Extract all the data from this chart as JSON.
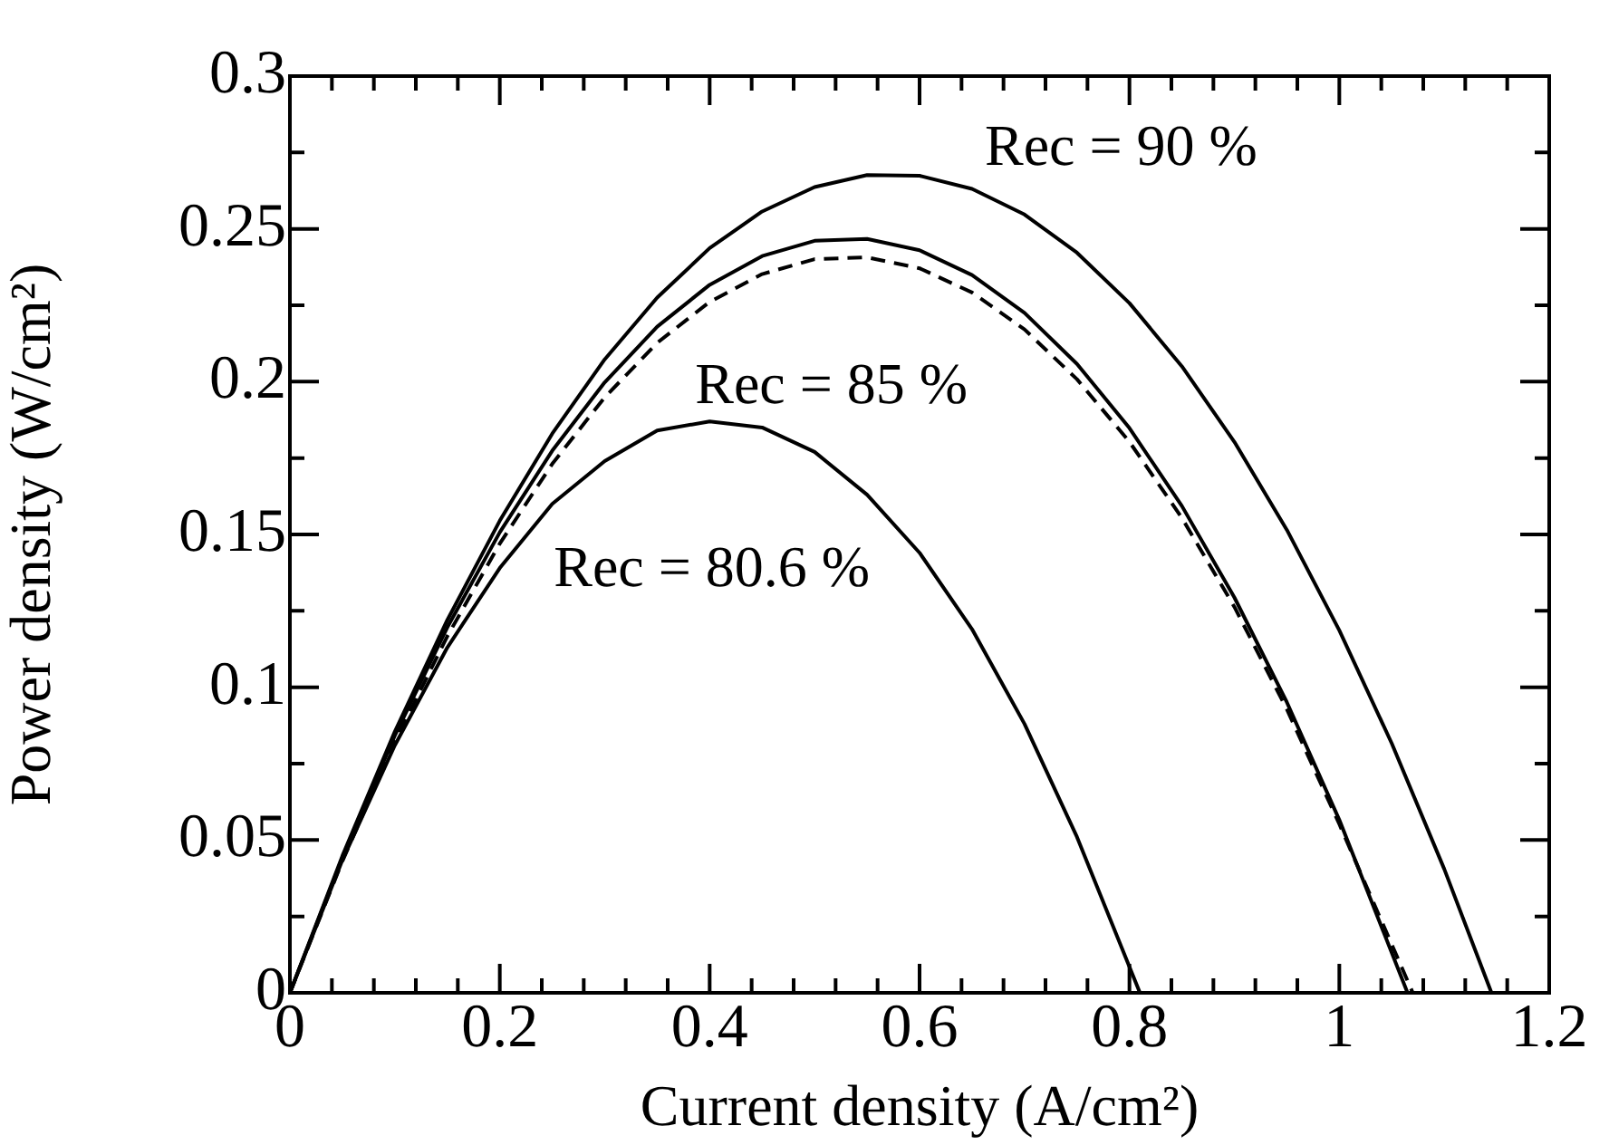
{
  "chart_data": {
    "type": "line",
    "xlabel": "Current density (A/cm²)",
    "ylabel": "Power density (W/cm²)",
    "marker": "none",
    "xlim": [
      0,
      1.2
    ],
    "ylim": [
      0,
      0.3
    ],
    "xticks": [
      0,
      {
        "value": 0.04,
        "label": null
      },
      {
        "value": 0.08,
        "label": null
      },
      {
        "value": 0.12,
        "label": null
      },
      {
        "value": 0.16,
        "label": null
      },
      {
        "value": 0.2,
        "label": "0.2"
      },
      {
        "value": 0.24,
        "label": null
      },
      {
        "value": 0.28,
        "label": null
      },
      {
        "value": 0.32,
        "label": null
      },
      {
        "value": 0.36,
        "label": null
      },
      {
        "value": 0.4,
        "label": "0.4"
      },
      {
        "value": 0.44,
        "label": null
      },
      {
        "value": 0.48,
        "label": null
      },
      {
        "value": 0.52,
        "label": null
      },
      {
        "value": 0.56,
        "label": null
      },
      {
        "value": 0.6,
        "label": "0.6"
      },
      {
        "value": 0.64,
        "label": null
      },
      {
        "value": 0.68,
        "label": null
      },
      {
        "value": 0.72,
        "label": null
      },
      {
        "value": 0.76,
        "label": null
      },
      {
        "value": 0.8,
        "label": "0.8"
      },
      {
        "value": 0.84,
        "label": null
      },
      {
        "value": 0.88,
        "label": null
      },
      {
        "value": 0.92,
        "label": null
      },
      {
        "value": 0.96,
        "label": null
      },
      1,
      {
        "value": 1.04,
        "label": null
      },
      {
        "value": 1.08,
        "label": null
      },
      {
        "value": 1.12,
        "label": null
      },
      {
        "value": 1.16,
        "label": null
      },
      {
        "value": 1.2,
        "label": "1.2"
      }
    ],
    "yticks": [
      0,
      {
        "value": 0.025,
        "label": null
      },
      0.05,
      {
        "value": 0.075,
        "label": null
      },
      0.1,
      {
        "value": 0.125,
        "label": null
      },
      0.15,
      {
        "value": 0.175,
        "label": null
      },
      0.2,
      {
        "value": 0.225,
        "label": null
      },
      0.25,
      {
        "value": 0.275,
        "label": null
      },
      0.3
    ],
    "series": [
      {
        "color": "#000000",
        "line_style": "solid",
        "x": [
          0,
          0.05,
          0.1,
          0.15,
          0.2,
          0.25,
          0.3,
          0.35,
          0.4,
          0.45,
          0.5,
          0.55,
          0.6,
          0.65,
          0.7,
          0.75,
          0.81
        ],
        "values": [
          0,
          0.0434,
          0.081,
          0.113,
          0.139,
          0.16,
          0.174,
          0.184,
          0.187,
          0.185,
          0.177,
          0.163,
          0.144,
          0.119,
          0.088,
          0.051,
          0
        ]
      },
      {
        "color": "#000000",
        "line_style": "solid",
        "x": [
          0,
          0.05,
          0.1,
          0.15,
          0.2,
          0.25,
          0.3,
          0.35,
          0.4,
          0.45,
          0.5,
          0.55,
          0.6,
          0.65,
          0.7,
          0.75,
          0.8,
          0.85,
          0.9,
          0.95,
          1.0,
          1.065
        ],
        "values": [
          0,
          0.0442,
          0.0842,
          0.1196,
          0.1507,
          0.1774,
          0.1998,
          0.218,
          0.2317,
          0.2411,
          0.2461,
          0.2467,
          0.243,
          0.2349,
          0.2225,
          0.2058,
          0.1848,
          0.1593,
          0.1294,
          0.0951,
          0.0566,
          0
        ]
      },
      {
        "color": "#000000",
        "line_style": "dashed",
        "x": [
          0,
          0.05,
          0.1,
          0.15,
          0.2,
          0.25,
          0.3,
          0.35,
          0.4,
          0.45,
          0.5,
          0.55,
          0.6,
          0.65,
          0.7,
          0.75,
          0.8,
          0.85,
          0.9,
          0.95,
          1.0,
          1.07
        ],
        "values": [
          0,
          0.0431,
          0.0822,
          0.1167,
          0.147,
          0.1731,
          0.1949,
          0.2127,
          0.2261,
          0.2352,
          0.2401,
          0.2407,
          0.2371,
          0.2292,
          0.2171,
          0.2008,
          0.1803,
          0.1554,
          0.1263,
          0.0928,
          0.0552,
          0
        ]
      },
      {
        "color": "#000000",
        "line_style": "solid",
        "x": [
          0,
          0.05,
          0.1,
          0.15,
          0.2,
          0.25,
          0.3,
          0.35,
          0.4,
          0.45,
          0.5,
          0.55,
          0.6,
          0.65,
          0.7,
          0.75,
          0.8,
          0.85,
          0.9,
          0.95,
          1.0,
          1.05,
          1.1,
          1.145
        ],
        "values": [
          0,
          0.0448,
          0.0855,
          0.122,
          0.1545,
          0.183,
          0.2073,
          0.2275,
          0.2437,
          0.2557,
          0.2637,
          0.2676,
          0.2674,
          0.2631,
          0.2547,
          0.2422,
          0.2257,
          0.205,
          0.1803,
          0.1515,
          0.1186,
          0.0816,
          0.0405,
          0
        ]
      }
    ],
    "annotations": [
      "Rec = 90 %",
      "Rec = 85 %",
      "Rec = 80.6 %"
    ]
  }
}
